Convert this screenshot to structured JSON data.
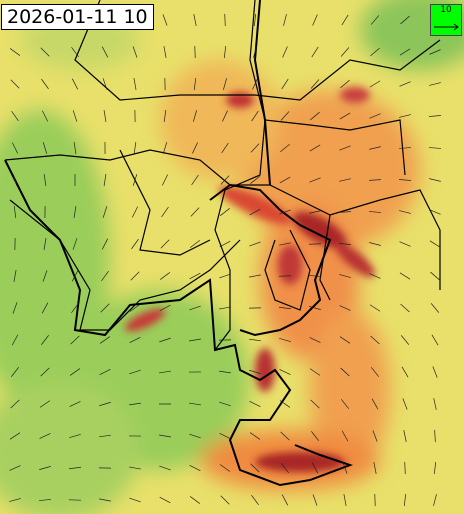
{
  "timestamp": "2026-01-11 10",
  "legend": {
    "arrow_label": "10"
  }
}
